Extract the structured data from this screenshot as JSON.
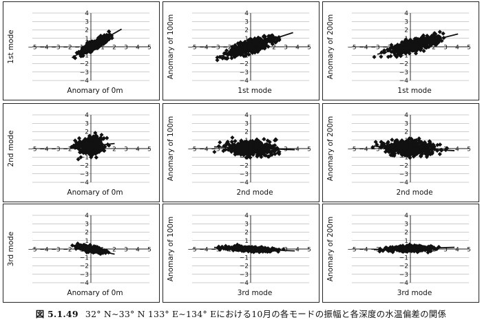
{
  "caption": {
    "figure_number": "図 5.1.49",
    "text": "32° N∼33° N 133° E∼134° Eにおける10月の各モードの振幅と各深度の水温偏差の関係"
  },
  "colors": {
    "ink": "#111111",
    "grid": "#9a9a9a",
    "frame": "#222222"
  },
  "chart_data": [
    {
      "type": "scatter",
      "row": 1,
      "col": 1,
      "xlabel": "Anomary of 0m",
      "ylabel": "1st mode",
      "xlim": [
        -5,
        5
      ],
      "ylim": [
        -4,
        4
      ],
      "x_ticks": [
        -5,
        -4,
        -3,
        -2,
        -1,
        1,
        2,
        3,
        4,
        5
      ],
      "y_ticks": [
        -4,
        -3,
        -2,
        -1,
        1,
        2,
        3,
        4
      ],
      "grid": true,
      "trend": {
        "slope": 0.8,
        "intercept": 0.0
      },
      "scatter": {
        "x_center": 0.3,
        "x_spread": 1.6,
        "noise": 0.6,
        "n": 420
      }
    },
    {
      "type": "scatter",
      "row": 1,
      "col": 2,
      "xlabel": "1st mode",
      "ylabel": "Anomary of 100m",
      "xlim": [
        -5,
        5
      ],
      "ylim": [
        -4,
        4
      ],
      "x_ticks": [
        -5,
        -4,
        -3,
        -2,
        -1,
        1,
        2,
        3,
        4,
        5
      ],
      "y_ticks": [
        -4,
        -3,
        -2,
        -1,
        1,
        2,
        3,
        4
      ],
      "grid": true,
      "trend": {
        "slope": 0.45,
        "intercept": 0.05
      },
      "scatter": {
        "x_center": 0.0,
        "x_spread": 2.5,
        "noise": 0.85,
        "n": 430
      }
    },
    {
      "type": "scatter",
      "row": 1,
      "col": 3,
      "xlabel": "1st mode",
      "ylabel": "Anomary of 200m",
      "xlim": [
        -5,
        5
      ],
      "ylim": [
        -4,
        4
      ],
      "x_ticks": [
        -5,
        -4,
        -3,
        -2,
        -1,
        1,
        2,
        3,
        4,
        5
      ],
      "y_ticks": [
        -4,
        -3,
        -2,
        -1,
        1,
        2,
        3,
        4
      ],
      "grid": true,
      "trend": {
        "slope": 0.35,
        "intercept": 0.1
      },
      "scatter": {
        "x_center": 0.3,
        "x_spread": 2.6,
        "noise": 0.9,
        "n": 430
      }
    },
    {
      "type": "scatter",
      "row": 2,
      "col": 1,
      "xlabel": "Anomary of 0m",
      "ylabel": "2nd mode",
      "xlim": [
        -5,
        5
      ],
      "ylim": [
        -4,
        4
      ],
      "x_ticks": [
        -5,
        -4,
        -3,
        -2,
        -1,
        1,
        2,
        3,
        4,
        5
      ],
      "y_ticks": [
        -4,
        -3,
        -2,
        -1,
        1,
        2,
        3,
        4
      ],
      "grid": true,
      "trend": {
        "slope": 0.15,
        "intercept": 0.3
      },
      "scatter": {
        "x_center": 0.0,
        "x_spread": 1.4,
        "noise": 1.15,
        "n": 400
      }
    },
    {
      "type": "scatter",
      "row": 2,
      "col": 2,
      "xlabel": "2nd mode",
      "ylabel": "Anomary of 100m",
      "xlim": [
        -5,
        5
      ],
      "ylim": [
        -4,
        4
      ],
      "x_ticks": [
        -5,
        -4,
        -3,
        -2,
        -1,
        1,
        2,
        3,
        4,
        5
      ],
      "y_ticks": [
        -4,
        -3,
        -2,
        -1,
        1,
        2,
        3,
        4
      ],
      "grid": true,
      "trend": {
        "slope": -0.05,
        "intercept": 0.05
      },
      "scatter": {
        "x_center": 0.0,
        "x_spread": 2.6,
        "noise": 1.0,
        "n": 430
      }
    },
    {
      "type": "scatter",
      "row": 2,
      "col": 3,
      "xlabel": "2nd mode",
      "ylabel": "Anomary of 200m",
      "xlim": [
        -5,
        5
      ],
      "ylim": [
        -4,
        4
      ],
      "x_ticks": [
        -5,
        -4,
        -3,
        -2,
        -1,
        1,
        2,
        3,
        4,
        5
      ],
      "y_ticks": [
        -4,
        -3,
        -2,
        -1,
        1,
        2,
        3,
        4
      ],
      "grid": true,
      "trend": {
        "slope": -0.08,
        "intercept": 0.05
      },
      "scatter": {
        "x_center": 0.0,
        "x_spread": 2.6,
        "noise": 1.05,
        "n": 430
      }
    },
    {
      "type": "scatter",
      "row": 3,
      "col": 1,
      "xlabel": "Anomary of 0m",
      "ylabel": "3rd mode",
      "xlim": [
        -5,
        5
      ],
      "ylim": [
        -4,
        4
      ],
      "x_ticks": [
        -5,
        -4,
        -3,
        -2,
        -1,
        1,
        2,
        3,
        4,
        5
      ],
      "y_ticks": [
        -4,
        -3,
        -2,
        -1,
        1,
        2,
        3,
        4
      ],
      "grid": true,
      "trend": {
        "slope": -0.3,
        "intercept": 0.0
      },
      "scatter": {
        "x_center": 0.0,
        "x_spread": 1.4,
        "noise": 0.35,
        "n": 360
      }
    },
    {
      "type": "scatter",
      "row": 3,
      "col": 2,
      "xlabel": "3rd mode",
      "ylabel": "Anomary of 100m",
      "xlim": [
        -5,
        5
      ],
      "ylim": [
        -4,
        4
      ],
      "x_ticks": [
        -5,
        -4,
        -3,
        -2,
        -1,
        1,
        2,
        3,
        4,
        5
      ],
      "y_ticks": [
        -4,
        -3,
        -2,
        -1,
        1,
        2,
        3,
        4
      ],
      "grid": true,
      "trend": {
        "slope": -0.06,
        "intercept": 0.0
      },
      "scatter": {
        "x_center": 0.0,
        "x_spread": 2.6,
        "noise": 0.28,
        "n": 380
      }
    },
    {
      "type": "scatter",
      "row": 3,
      "col": 3,
      "xlabel": "3rd mode",
      "ylabel": "Anomary of 200m",
      "xlim": [
        -5,
        5
      ],
      "ylim": [
        -4,
        4
      ],
      "x_ticks": [
        -5,
        -4,
        -3,
        -2,
        -1,
        1,
        2,
        3,
        4,
        5
      ],
      "y_ticks": [
        -4,
        -3,
        -2,
        -1,
        1,
        2,
        3,
        4
      ],
      "grid": true,
      "trend": {
        "slope": 0.04,
        "intercept": 0.05
      },
      "scatter": {
        "x_center": 0.0,
        "x_spread": 2.6,
        "noise": 0.35,
        "n": 380
      }
    }
  ]
}
